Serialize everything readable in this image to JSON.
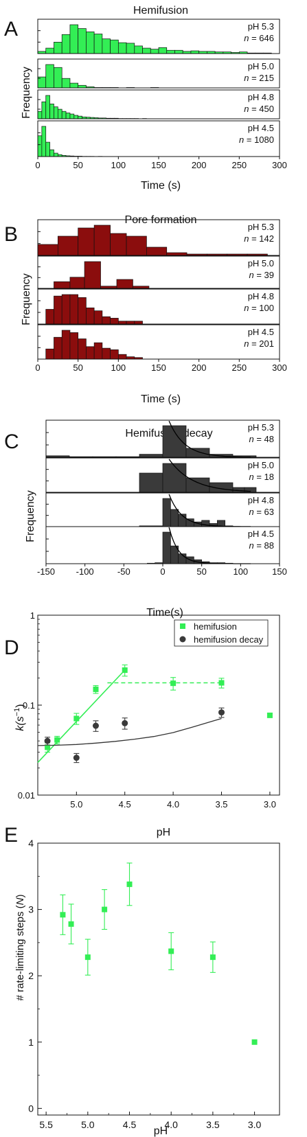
{
  "colors": {
    "hemifusion": "#33ee55",
    "pore": "#8b0d0d",
    "decay": "#3a3a3a",
    "axis": "#111111",
    "fit_decay_line": "#333333"
  },
  "chart_data": [
    {
      "panel": "A",
      "type": "bar",
      "title": "Hemifusion",
      "xlabel": "Time (s)",
      "ylabel": "Frequency",
      "xlim": [
        0,
        300
      ],
      "xticks": [
        0,
        50,
        100,
        150,
        200,
        250,
        300
      ],
      "binwidth": 10,
      "subplots": [
        {
          "label1": "pH 5.3",
          "label2": "n = 646",
          "x": [
            0,
            10,
            20,
            30,
            40,
            50,
            60,
            70,
            80,
            90,
            100,
            110,
            120,
            130,
            140,
            150,
            160,
            170,
            180,
            190,
            200,
            210,
            220,
            230,
            240,
            250,
            260,
            270,
            280,
            290
          ],
          "values": [
            4,
            10,
            21,
            35,
            53,
            46,
            40,
            36,
            27,
            25,
            20,
            19,
            14,
            10,
            8,
            11,
            6,
            6,
            4,
            5,
            4,
            4,
            3,
            3,
            2,
            3,
            1,
            1,
            1,
            0
          ]
        },
        {
          "label1": "pH 5.0",
          "label2": "n = 215",
          "x": [
            0,
            10,
            20,
            30,
            40,
            50,
            60,
            70,
            80,
            90,
            100,
            110,
            120,
            130,
            140,
            150
          ],
          "values": [
            30,
            64,
            56,
            26,
            13,
            7,
            3,
            1,
            1,
            1,
            0,
            1,
            0,
            0,
            1,
            0
          ]
        },
        {
          "label1": "pH 4.8",
          "label2": "n = 450",
          "x": [
            0,
            5,
            10,
            15,
            20,
            25,
            30,
            35,
            40,
            45,
            50,
            55,
            60,
            65,
            70,
            75,
            80,
            85,
            90,
            95,
            100,
            105,
            110,
            115,
            120,
            125,
            130,
            135,
            140
          ],
          "values": [
            28,
            64,
            88,
            56,
            45,
            36,
            28,
            22,
            18,
            13,
            10,
            7,
            6,
            5,
            4,
            3,
            3,
            2,
            2,
            2,
            1,
            1,
            1,
            1,
            1,
            0,
            1,
            0,
            0
          ]
        },
        {
          "label1": "pH 4.5",
          "label2": "n = 1080",
          "x": [
            0,
            5,
            10,
            15,
            20,
            25,
            30,
            35,
            40,
            45,
            50,
            55,
            60,
            65,
            70,
            75,
            80,
            85,
            90,
            95,
            100
          ],
          "values": [
            110,
            160,
            76,
            36,
            18,
            10,
            6,
            4,
            3,
            2,
            2,
            1,
            1,
            1,
            0,
            1,
            0,
            0,
            0,
            0,
            0
          ]
        }
      ]
    },
    {
      "panel": "B",
      "type": "bar",
      "title": "Pore formation",
      "xlabel": "Time (s)",
      "ylabel": "Frequency",
      "xlim": [
        0,
        300
      ],
      "xticks": [
        0,
        50,
        100,
        150,
        200,
        250,
        300
      ],
      "subplots": [
        {
          "label1": "pH 5.3",
          "label2": "n = 142",
          "bins": [
            [
              0,
              25,
              4
            ],
            [
              25,
              50,
              7
            ],
            [
              50,
              70,
              10
            ],
            [
              70,
              90,
              11
            ],
            [
              90,
              110,
              8
            ],
            [
              110,
              135,
              7
            ],
            [
              135,
              160,
              3
            ],
            [
              160,
              185,
              1
            ],
            [
              185,
              210,
              0.5
            ],
            [
              210,
              235,
              0.5
            ],
            [
              235,
              260,
              0.5
            ],
            [
              260,
              285,
              0.5
            ]
          ]
        },
        {
          "label1": "pH 5.0",
          "label2": "n = 39",
          "bins": [
            [
              20,
              40,
              3
            ],
            [
              40,
              58,
              5
            ],
            [
              58,
              78,
              12
            ],
            [
              78,
              98,
              1
            ],
            [
              98,
              118,
              4
            ],
            [
              118,
              138,
              1
            ]
          ]
        },
        {
          "label1": "pH 4.8",
          "label2": "n = 100",
          "bins": [
            [
              10,
              20,
              10
            ],
            [
              20,
              30,
              19
            ],
            [
              30,
              40,
              20
            ],
            [
              40,
              50,
              20
            ],
            [
              50,
              60,
              18
            ],
            [
              60,
              70,
              11
            ],
            [
              70,
              80,
              9
            ],
            [
              80,
              90,
              5
            ],
            [
              90,
              100,
              4
            ],
            [
              100,
              110,
              2
            ],
            [
              110,
              120,
              2
            ],
            [
              120,
              130,
              2
            ]
          ]
        },
        {
          "label1": "pH 4.5",
          "label2": "n = 201",
          "bins": [
            [
              10,
              20,
              13
            ],
            [
              20,
              30,
              28
            ],
            [
              30,
              40,
              37
            ],
            [
              40,
              50,
              34
            ],
            [
              50,
              60,
              26
            ],
            [
              60,
              70,
              16
            ],
            [
              70,
              80,
              21
            ],
            [
              80,
              90,
              14
            ],
            [
              90,
              100,
              12
            ],
            [
              100,
              110,
              6
            ],
            [
              110,
              120,
              3
            ],
            [
              120,
              130,
              2
            ]
          ]
        }
      ]
    },
    {
      "panel": "C",
      "type": "bar",
      "title": "Hemifusion decay",
      "xlabel": "Time(s)",
      "ylabel": "Frequency",
      "xlim": [
        -150,
        150
      ],
      "xticks": [
        -150,
        -100,
        -50,
        0,
        50,
        100,
        150
      ],
      "subplots": [
        {
          "label1": "pH 5.3",
          "label2": "n = 48",
          "bins": [
            [
              -150,
              -120,
              1
            ],
            [
              -120,
              -90,
              0.4
            ],
            [
              -90,
              -60,
              0.4
            ],
            [
              -60,
              -30,
              0.4
            ],
            [
              -30,
              0,
              2
            ],
            [
              0,
              30,
              21
            ],
            [
              30,
              60,
              6
            ],
            [
              60,
              90,
              2
            ],
            [
              90,
              120,
              1
            ]
          ],
          "fit_tau": 20
        },
        {
          "label1": "pH 5.0",
          "label2": "n = 18",
          "bins": [
            [
              -30,
              0,
              4
            ],
            [
              0,
              30,
              6
            ],
            [
              30,
              60,
              3
            ],
            [
              60,
              90,
              2
            ],
            [
              90,
              105,
              1
            ],
            [
              105,
              120,
              1
            ]
          ],
          "fit_tau": 30
        },
        {
          "label1": "pH 4.8",
          "label2": "n = 63",
          "bins": [
            [
              -30,
              0,
              0.5
            ],
            [
              0,
              10,
              18
            ],
            [
              10,
              20,
              11
            ],
            [
              20,
              30,
              8
            ],
            [
              30,
              40,
              5
            ],
            [
              40,
              50,
              3
            ],
            [
              50,
              60,
              4
            ],
            [
              60,
              70,
              2
            ],
            [
              70,
              80,
              4
            ],
            [
              80,
              90,
              0.5
            ]
          ],
          "fit_tau": 16
        },
        {
          "label1": "pH 4.5",
          "label2": "n = 88",
          "bins": [
            [
              -20,
              -10,
              0.5
            ],
            [
              -10,
              0,
              1
            ],
            [
              0,
              10,
              32
            ],
            [
              10,
              20,
              18
            ],
            [
              20,
              30,
              10
            ],
            [
              30,
              40,
              7
            ],
            [
              40,
              50,
              4
            ],
            [
              50,
              60,
              2
            ],
            [
              60,
              70,
              1
            ],
            [
              70,
              80,
              1
            ],
            [
              80,
              90,
              0.5
            ]
          ],
          "fit_tau": 12
        }
      ]
    },
    {
      "panel": "D",
      "type": "scatter",
      "xlabel": "pH",
      "ylabel": "k(s-1)",
      "ylog": true,
      "ylim": [
        0.01,
        1
      ],
      "yticks": [
        "0.01",
        "0.1",
        "1"
      ],
      "xlim": [
        5.4,
        2.9
      ],
      "xticks": [
        "5.0",
        "4.5",
        "4.0",
        "3.5",
        "3.0"
      ],
      "series": [
        {
          "name": "hemifusion",
          "x": [
            5.3,
            5.2,
            5.0,
            4.8,
            4.5,
            4.0,
            3.5,
            3.0
          ],
          "y": [
            0.034,
            0.041,
            0.071,
            0.15,
            0.245,
            0.175,
            0.177,
            0.077
          ],
          "err": [
            0.004,
            0.004,
            0.01,
            0.015,
            0.035,
            0.028,
            0.022,
            0.004
          ]
        },
        {
          "name": "hemifusion decay",
          "x": [
            5.3,
            5.0,
            4.8,
            4.5,
            3.5
          ],
          "y": [
            0.04,
            0.026,
            0.059,
            0.063,
            0.083
          ],
          "err": [
            0.004,
            0.003,
            0.008,
            0.009,
            0.01
          ]
        }
      ],
      "fit_rising_line": [
        [
          5.4,
          0.023
        ],
        [
          4.5,
          0.245
        ]
      ],
      "fit_plateau_dashed": [
        [
          4.68,
          0.177
        ],
        [
          3.5,
          0.177
        ]
      ],
      "fit_decay_curve": [
        [
          5.4,
          0.0355
        ],
        [
          5.2,
          0.0358
        ],
        [
          5.0,
          0.0365
        ],
        [
          4.8,
          0.0378
        ],
        [
          4.6,
          0.0395
        ],
        [
          4.4,
          0.0418
        ],
        [
          4.2,
          0.0448
        ],
        [
          4.0,
          0.0495
        ],
        [
          3.8,
          0.057
        ],
        [
          3.6,
          0.066
        ],
        [
          3.5,
          0.071
        ]
      ],
      "legend_position": "top-right"
    },
    {
      "panel": "E",
      "type": "scatter",
      "xlabel": "pH",
      "ylabel": "# rate-limiting steps (N)",
      "xlim": [
        5.6,
        2.7
      ],
      "xticks": [
        "5.5",
        "5.0",
        "4.5",
        "4.0",
        "3.5",
        "3.0"
      ],
      "ylim": [
        -0.1,
        4
      ],
      "yticks": [
        "0",
        "1",
        "2",
        "3",
        "4"
      ],
      "series": [
        {
          "name": "",
          "x": [
            5.3,
            5.2,
            5.0,
            4.8,
            4.5,
            4.0,
            3.5,
            3.0
          ],
          "y": [
            2.92,
            2.78,
            2.28,
            3.0,
            3.38,
            2.37,
            2.28,
            1.0
          ],
          "err": [
            0.3,
            0.3,
            0.27,
            0.3,
            0.32,
            0.28,
            0.23,
            0
          ]
        }
      ]
    }
  ]
}
